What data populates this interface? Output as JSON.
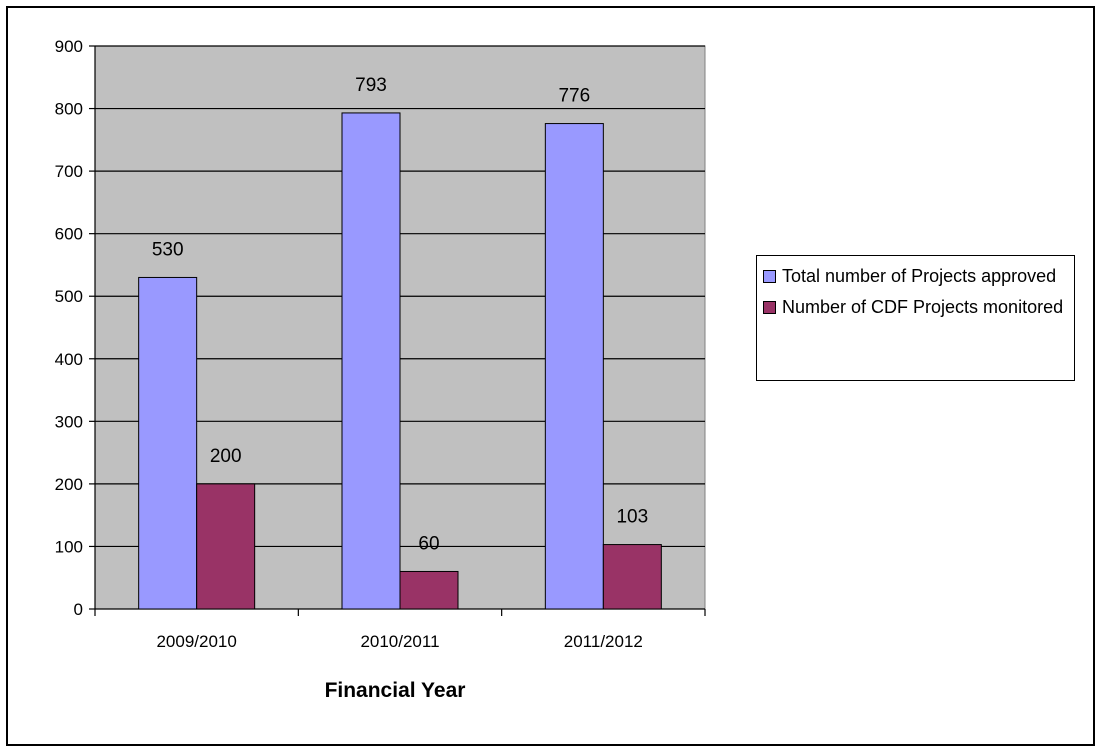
{
  "chart_data": {
    "type": "bar",
    "categories": [
      "2009/2010",
      "2010/2011",
      "2011/2012"
    ],
    "series": [
      {
        "name": "Total number of Projects approved",
        "values": [
          530,
          793,
          776
        ],
        "color": "#9999ff"
      },
      {
        "name": "Number of CDF Projects monitored",
        "values": [
          200,
          60,
          103
        ],
        "color": "#993366"
      }
    ],
    "xlabel": "Financial Year",
    "ylabel": "",
    "ylim": [
      0,
      900
    ],
    "yticks": [
      0,
      100,
      200,
      300,
      400,
      500,
      600,
      700,
      800,
      900
    ],
    "grid": true,
    "plot_background": "#c0c0c0",
    "legend_position": "right"
  }
}
